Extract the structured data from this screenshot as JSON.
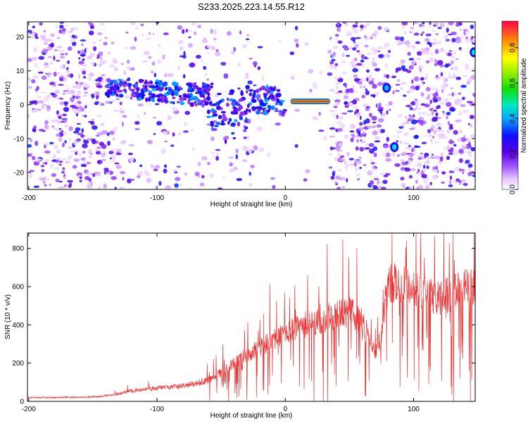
{
  "title": "S233.2025.223.14.55.R12",
  "chart_data": [
    {
      "type": "heatmap",
      "name": "spectrogram",
      "xlabel": "Height of straight line (km)",
      "ylabel": "Frequency (Hz)",
      "xlim": [
        -201,
        148
      ],
      "ylim": [
        -25,
        24.5
      ],
      "xticks": [
        "-200",
        "-100",
        "0",
        "100"
      ],
      "xtick_values": [
        -200,
        -100,
        0,
        100
      ],
      "yticks": [
        "-20",
        "-10",
        "0",
        "10",
        "20"
      ],
      "ytick_values": [
        -20,
        -10,
        0,
        10,
        20
      ],
      "colorbar": {
        "label": "Normalized spectral amplitude",
        "range": [
          0,
          0.95
        ],
        "ticks": [
          "0.0",
          "0.2",
          "0.4",
          "0.6",
          "0.8"
        ],
        "tick_values": [
          0,
          0.2,
          0.4,
          0.6,
          0.8
        ]
      },
      "features": [
        {
          "kind": "tone_band",
          "x_start": 4,
          "x_end": 35,
          "freq": 1,
          "amplitude": 0.95
        },
        {
          "kind": "blob",
          "x": 79,
          "freq": 5,
          "amplitude": 0.45
        },
        {
          "kind": "blob",
          "x": 85,
          "freq": -12.5,
          "amplitude": 0.5
        },
        {
          "kind": "blob",
          "x": 147,
          "freq": 15.5,
          "amplitude": 0.5
        }
      ]
    },
    {
      "type": "line",
      "name": "snr",
      "xlabel": "Height of straight line (km)",
      "ylabel": "SNR (10 * v/v)",
      "xlim": [
        -201,
        148
      ],
      "ylim": [
        0,
        880
      ],
      "xticks": [
        "-200",
        "-100",
        "0",
        "100"
      ],
      "xtick_values": [
        -200,
        -100,
        0,
        100
      ],
      "yticks": [
        "0",
        "200",
        "400",
        "600",
        "800"
      ],
      "ytick_values": [
        0,
        200,
        400,
        600,
        800
      ],
      "color": "#ee3333",
      "envelope": {
        "x": [
          -201,
          -180,
          -160,
          -145,
          -140,
          -130,
          -120,
          -100,
          -80,
          -60,
          -50,
          -40,
          -30,
          -20,
          -10,
          0,
          10,
          20,
          30,
          40,
          50,
          60,
          65,
          70,
          75,
          78,
          82,
          90,
          100,
          110,
          120,
          130,
          140,
          148
        ],
        "y": [
          20,
          20,
          22,
          25,
          30,
          40,
          55,
          70,
          80,
          110,
          150,
          200,
          240,
          280,
          320,
          360,
          390,
          410,
          430,
          450,
          470,
          420,
          330,
          270,
          330,
          550,
          620,
          610,
          590,
          560,
          540,
          560,
          590,
          600
        ]
      }
    }
  ]
}
